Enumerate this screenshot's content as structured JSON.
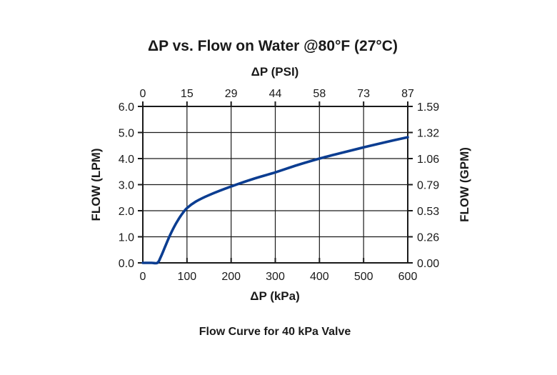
{
  "chart_data": {
    "type": "line",
    "title": "ΔP vs. Flow on Water @80°F (27°C)",
    "caption": "Flow Curve for 40 kPa Valve",
    "xlabel": "ΔP (kPa)",
    "x2label": "ΔP (PSI)",
    "ylabel": "FLOW (LPM)",
    "y2label": "FLOW (GPM)",
    "xlim": [
      0,
      600
    ],
    "ylim": [
      0,
      6
    ],
    "x_ticks": [
      "0",
      "100",
      "200",
      "300",
      "400",
      "500",
      "600"
    ],
    "x2_ticks": [
      "0",
      "15",
      "29",
      "44",
      "58",
      "73",
      "87"
    ],
    "y_ticks": [
      "0.0",
      "1.0",
      "2.0",
      "3.0",
      "4.0",
      "5.0",
      "6.0"
    ],
    "y2_ticks": [
      "0.00",
      "0.26",
      "0.53",
      "0.79",
      "1.06",
      "1.32",
      "1.59"
    ],
    "grid": true,
    "series": [
      {
        "color": "#0b3d91",
        "x": [
          0,
          20,
          33,
          40,
          50,
          60,
          70,
          80,
          90,
          100,
          120,
          150,
          200,
          250,
          300,
          350,
          400,
          450,
          500,
          550,
          600
        ],
        "y": [
          0.0,
          0.0,
          0.0,
          0.2,
          0.6,
          1.0,
          1.35,
          1.65,
          1.9,
          2.1,
          2.35,
          2.6,
          2.93,
          3.22,
          3.47,
          3.75,
          4.0,
          4.22,
          4.43,
          4.63,
          4.82
        ]
      }
    ]
  }
}
